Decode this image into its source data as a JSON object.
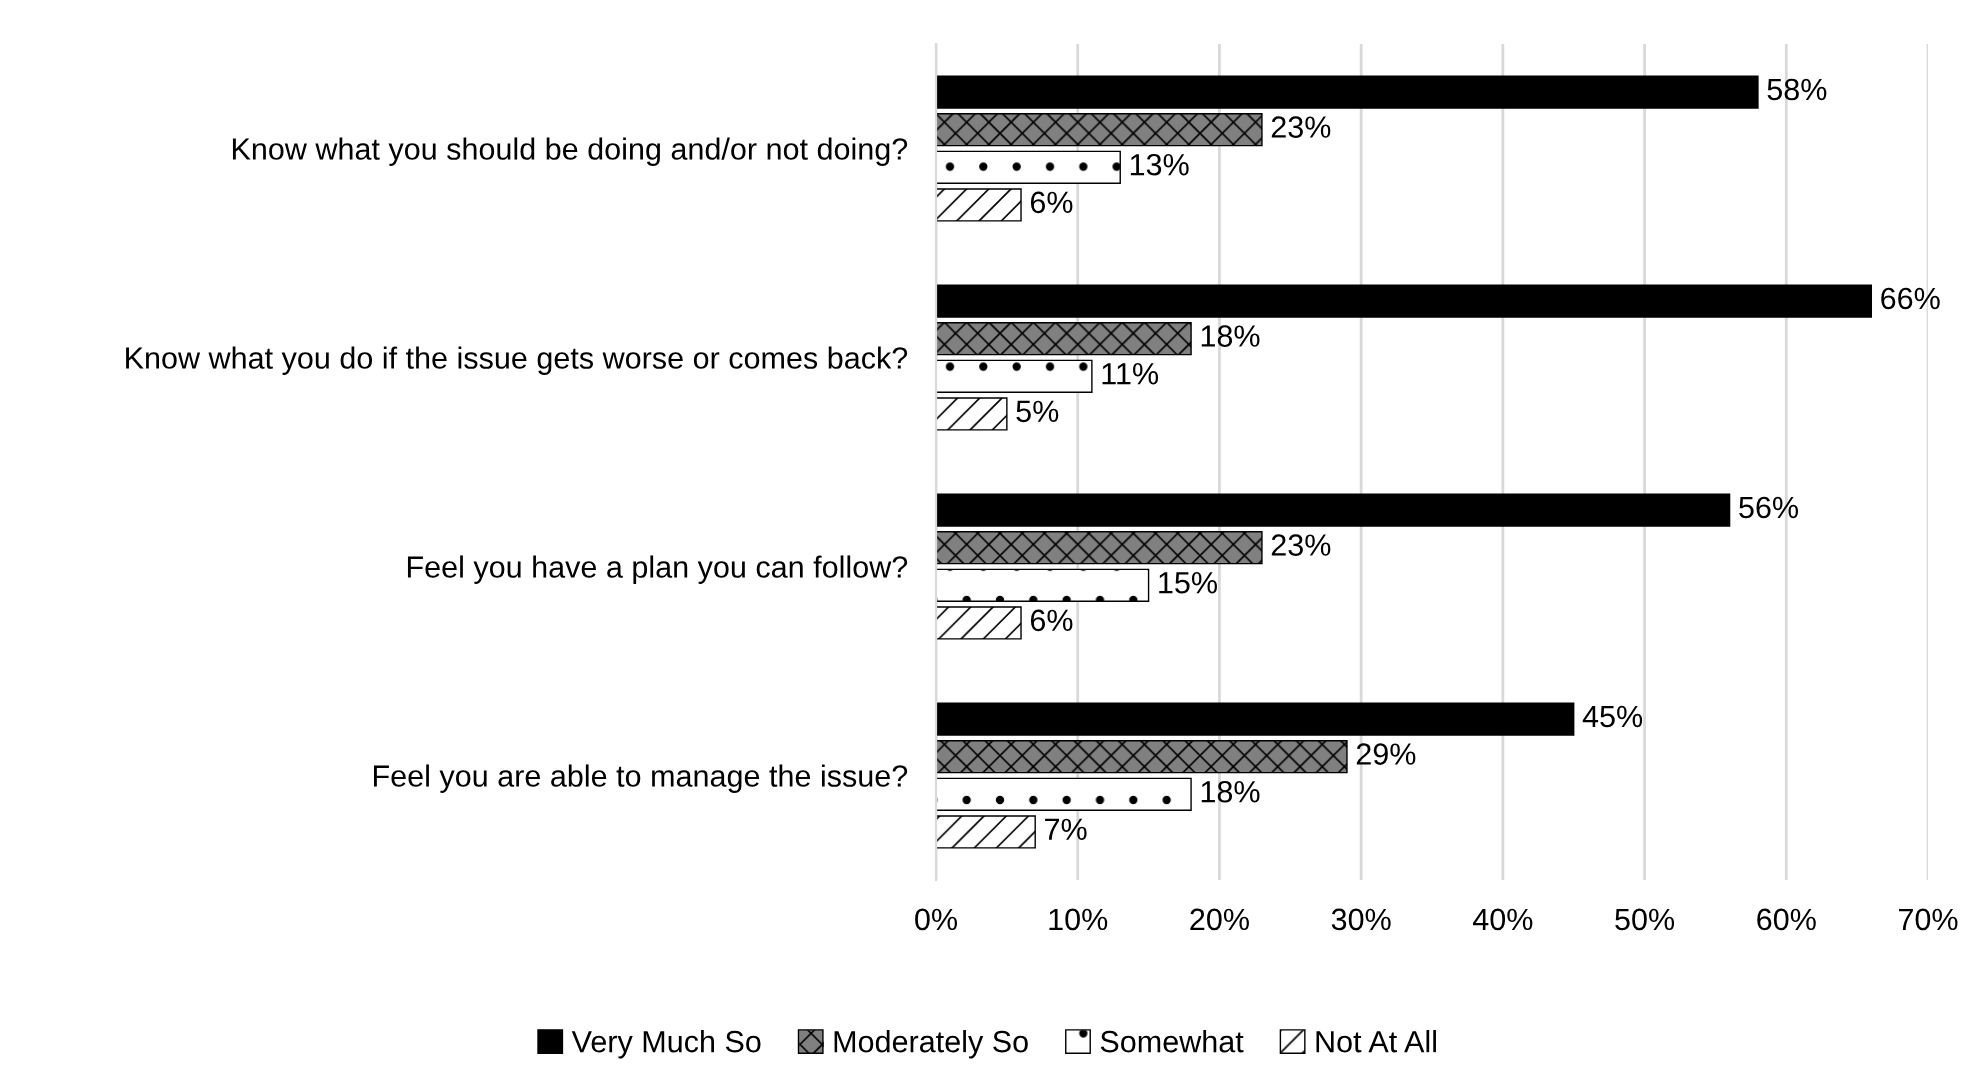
{
  "chart_data": {
    "type": "bar",
    "orientation": "horizontal",
    "categories": [
      "Know what you should be doing and/or not doing?",
      "Know what you do if the issue gets worse or comes back?",
      "Feel you have a plan you can follow?",
      "Feel you are able to manage the issue?"
    ],
    "series": [
      {
        "name": "Very Much So",
        "color": "#000000",
        "values": [
          58,
          66,
          56,
          45
        ],
        "value_labels": [
          "58%",
          "66%",
          "56%",
          "45%"
        ]
      },
      {
        "name": "Moderately So",
        "color": "#808080",
        "values": [
          23,
          18,
          23,
          29
        ],
        "value_labels": [
          "23%",
          "18%",
          "23%",
          "29%"
        ]
      },
      {
        "name": "Somewhat",
        "color": "#ffffff",
        "values": [
          13,
          11,
          15,
          18
        ],
        "value_labels": [
          "13%",
          "11%",
          "15%",
          "18%"
        ]
      },
      {
        "name": "Not At All",
        "color": "#ffffff",
        "values": [
          6,
          5,
          6,
          7
        ],
        "value_labels": [
          "6%",
          "5%",
          "6%",
          "7%"
        ]
      }
    ],
    "xlim": [
      0,
      70
    ],
    "xticks": [
      {
        "value": 0,
        "label": "0%"
      },
      {
        "value": 10,
        "label": "10%"
      },
      {
        "value": 20,
        "label": "20%"
      },
      {
        "value": 30,
        "label": "30%"
      },
      {
        "value": 40,
        "label": "40%"
      },
      {
        "value": 50,
        "label": "50%"
      },
      {
        "value": 60,
        "label": "60%"
      },
      {
        "value": 70,
        "label": "70%"
      }
    ],
    "grid": "x",
    "legend": "bottom"
  }
}
